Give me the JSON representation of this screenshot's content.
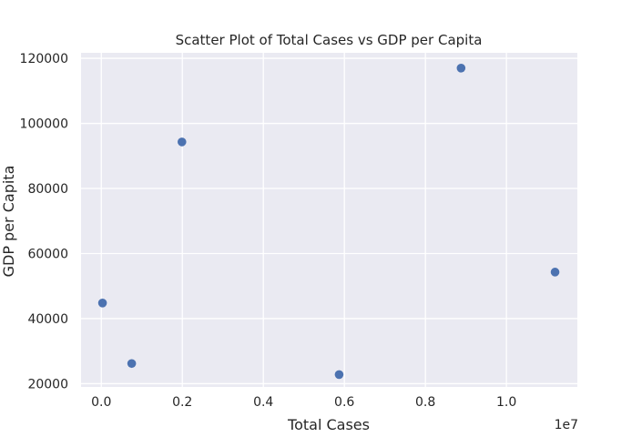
{
  "chart_data": {
    "type": "scatter",
    "title": "Scatter Plot of Total Cases vs GDP per Capita",
    "xlabel": "Total Cases",
    "ylabel": "GDP per Capita",
    "x_offset_label": "1e7",
    "xlim": [
      -0.05,
      1.175
    ],
    "ylim": [
      19000,
      121700
    ],
    "xticks": [
      0.0,
      0.2,
      0.4,
      0.6,
      0.8,
      1.0
    ],
    "xtick_labels": [
      "0.0",
      "0.2",
      "0.4",
      "0.6",
      "0.8",
      "1.0"
    ],
    "yticks": [
      20000,
      40000,
      60000,
      80000,
      100000,
      120000
    ],
    "ytick_labels": [
      "20000",
      "40000",
      "60000",
      "80000",
      "100000",
      "120000"
    ],
    "grid": true,
    "point_color": "#4c72b0",
    "plot_background": "#eaeaf2",
    "series": [
      {
        "x": [
          0.003,
          0.075,
          0.199,
          0.587,
          0.888,
          1.12
        ],
        "y": [
          44800,
          26200,
          94300,
          22800,
          117000,
          54300
        ]
      }
    ]
  }
}
